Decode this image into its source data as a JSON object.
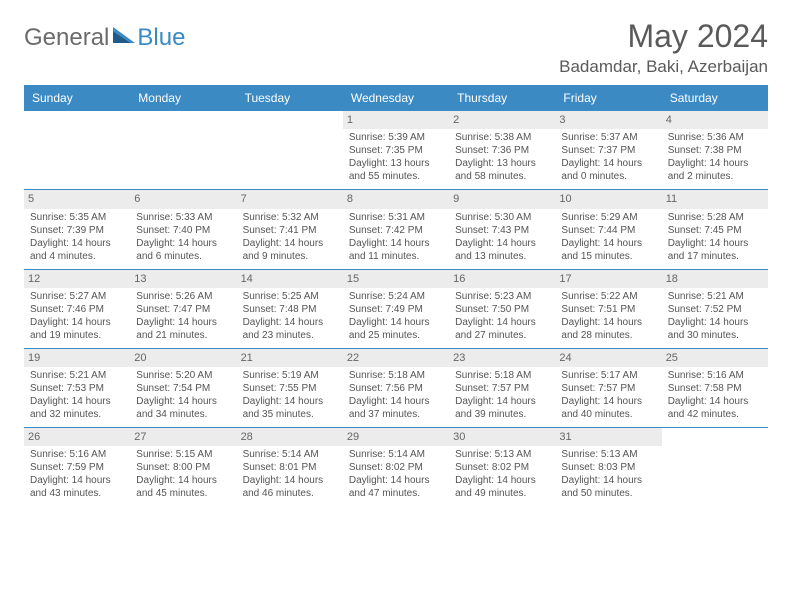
{
  "brand": {
    "part1": "General",
    "part2": "Blue"
  },
  "title": "May 2024",
  "location": "Badamdar, Baki, Azerbaijan",
  "colors": {
    "header_bg": "#3b8ac4",
    "header_text": "#ffffff",
    "daynum_bg": "#ececec",
    "text": "#555555",
    "rule": "#3b8ac4"
  },
  "dow": [
    "Sunday",
    "Monday",
    "Tuesday",
    "Wednesday",
    "Thursday",
    "Friday",
    "Saturday"
  ],
  "weeks": [
    [
      {
        "n": "",
        "empty": true
      },
      {
        "n": "",
        "empty": true
      },
      {
        "n": "",
        "empty": true
      },
      {
        "n": "1",
        "sr": "Sunrise: 5:39 AM",
        "ss": "Sunset: 7:35 PM",
        "dl": "Daylight: 13 hours and 55 minutes."
      },
      {
        "n": "2",
        "sr": "Sunrise: 5:38 AM",
        "ss": "Sunset: 7:36 PM",
        "dl": "Daylight: 13 hours and 58 minutes."
      },
      {
        "n": "3",
        "sr": "Sunrise: 5:37 AM",
        "ss": "Sunset: 7:37 PM",
        "dl": "Daylight: 14 hours and 0 minutes."
      },
      {
        "n": "4",
        "sr": "Sunrise: 5:36 AM",
        "ss": "Sunset: 7:38 PM",
        "dl": "Daylight: 14 hours and 2 minutes."
      }
    ],
    [
      {
        "n": "5",
        "sr": "Sunrise: 5:35 AM",
        "ss": "Sunset: 7:39 PM",
        "dl": "Daylight: 14 hours and 4 minutes."
      },
      {
        "n": "6",
        "sr": "Sunrise: 5:33 AM",
        "ss": "Sunset: 7:40 PM",
        "dl": "Daylight: 14 hours and 6 minutes."
      },
      {
        "n": "7",
        "sr": "Sunrise: 5:32 AM",
        "ss": "Sunset: 7:41 PM",
        "dl": "Daylight: 14 hours and 9 minutes."
      },
      {
        "n": "8",
        "sr": "Sunrise: 5:31 AM",
        "ss": "Sunset: 7:42 PM",
        "dl": "Daylight: 14 hours and 11 minutes."
      },
      {
        "n": "9",
        "sr": "Sunrise: 5:30 AM",
        "ss": "Sunset: 7:43 PM",
        "dl": "Daylight: 14 hours and 13 minutes."
      },
      {
        "n": "10",
        "sr": "Sunrise: 5:29 AM",
        "ss": "Sunset: 7:44 PM",
        "dl": "Daylight: 14 hours and 15 minutes."
      },
      {
        "n": "11",
        "sr": "Sunrise: 5:28 AM",
        "ss": "Sunset: 7:45 PM",
        "dl": "Daylight: 14 hours and 17 minutes."
      }
    ],
    [
      {
        "n": "12",
        "sr": "Sunrise: 5:27 AM",
        "ss": "Sunset: 7:46 PM",
        "dl": "Daylight: 14 hours and 19 minutes."
      },
      {
        "n": "13",
        "sr": "Sunrise: 5:26 AM",
        "ss": "Sunset: 7:47 PM",
        "dl": "Daylight: 14 hours and 21 minutes."
      },
      {
        "n": "14",
        "sr": "Sunrise: 5:25 AM",
        "ss": "Sunset: 7:48 PM",
        "dl": "Daylight: 14 hours and 23 minutes."
      },
      {
        "n": "15",
        "sr": "Sunrise: 5:24 AM",
        "ss": "Sunset: 7:49 PM",
        "dl": "Daylight: 14 hours and 25 minutes."
      },
      {
        "n": "16",
        "sr": "Sunrise: 5:23 AM",
        "ss": "Sunset: 7:50 PM",
        "dl": "Daylight: 14 hours and 27 minutes."
      },
      {
        "n": "17",
        "sr": "Sunrise: 5:22 AM",
        "ss": "Sunset: 7:51 PM",
        "dl": "Daylight: 14 hours and 28 minutes."
      },
      {
        "n": "18",
        "sr": "Sunrise: 5:21 AM",
        "ss": "Sunset: 7:52 PM",
        "dl": "Daylight: 14 hours and 30 minutes."
      }
    ],
    [
      {
        "n": "19",
        "sr": "Sunrise: 5:21 AM",
        "ss": "Sunset: 7:53 PM",
        "dl": "Daylight: 14 hours and 32 minutes."
      },
      {
        "n": "20",
        "sr": "Sunrise: 5:20 AM",
        "ss": "Sunset: 7:54 PM",
        "dl": "Daylight: 14 hours and 34 minutes."
      },
      {
        "n": "21",
        "sr": "Sunrise: 5:19 AM",
        "ss": "Sunset: 7:55 PM",
        "dl": "Daylight: 14 hours and 35 minutes."
      },
      {
        "n": "22",
        "sr": "Sunrise: 5:18 AM",
        "ss": "Sunset: 7:56 PM",
        "dl": "Daylight: 14 hours and 37 minutes."
      },
      {
        "n": "23",
        "sr": "Sunrise: 5:18 AM",
        "ss": "Sunset: 7:57 PM",
        "dl": "Daylight: 14 hours and 39 minutes."
      },
      {
        "n": "24",
        "sr": "Sunrise: 5:17 AM",
        "ss": "Sunset: 7:57 PM",
        "dl": "Daylight: 14 hours and 40 minutes."
      },
      {
        "n": "25",
        "sr": "Sunrise: 5:16 AM",
        "ss": "Sunset: 7:58 PM",
        "dl": "Daylight: 14 hours and 42 minutes."
      }
    ],
    [
      {
        "n": "26",
        "sr": "Sunrise: 5:16 AM",
        "ss": "Sunset: 7:59 PM",
        "dl": "Daylight: 14 hours and 43 minutes."
      },
      {
        "n": "27",
        "sr": "Sunrise: 5:15 AM",
        "ss": "Sunset: 8:00 PM",
        "dl": "Daylight: 14 hours and 45 minutes."
      },
      {
        "n": "28",
        "sr": "Sunrise: 5:14 AM",
        "ss": "Sunset: 8:01 PM",
        "dl": "Daylight: 14 hours and 46 minutes."
      },
      {
        "n": "29",
        "sr": "Sunrise: 5:14 AM",
        "ss": "Sunset: 8:02 PM",
        "dl": "Daylight: 14 hours and 47 minutes."
      },
      {
        "n": "30",
        "sr": "Sunrise: 5:13 AM",
        "ss": "Sunset: 8:02 PM",
        "dl": "Daylight: 14 hours and 49 minutes."
      },
      {
        "n": "31",
        "sr": "Sunrise: 5:13 AM",
        "ss": "Sunset: 8:03 PM",
        "dl": "Daylight: 14 hours and 50 minutes."
      },
      {
        "n": "",
        "empty": true
      }
    ]
  ]
}
